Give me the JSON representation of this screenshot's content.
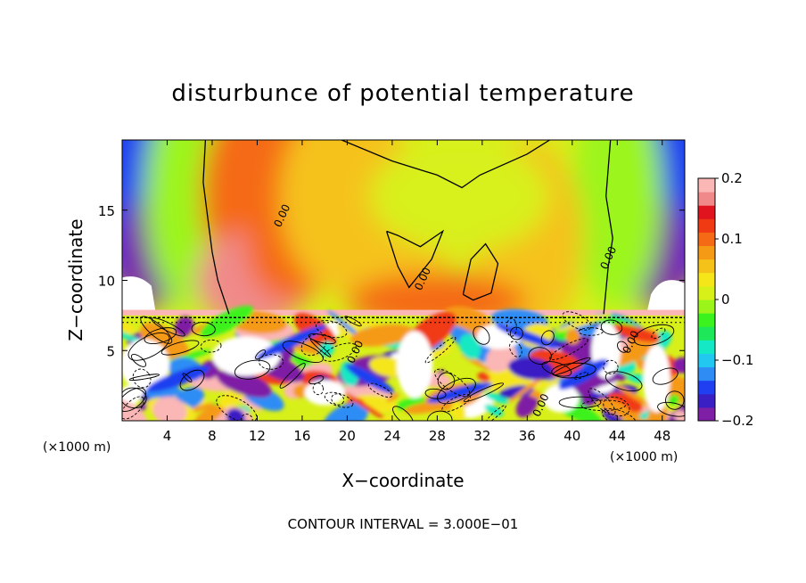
{
  "chart_data": {
    "type": "heatmap",
    "title": "disturbunce of potential temperature",
    "xlabel": "X−coordinate",
    "ylabel": "Z−coordinate",
    "x_unit": "(×1000 m)",
    "y_unit": "(×1000 m)",
    "xlim": [
      0,
      50
    ],
    "ylim": [
      0,
      20
    ],
    "x_ticks": [
      4,
      8,
      12,
      16,
      20,
      24,
      28,
      32,
      36,
      40,
      44,
      48
    ],
    "y_ticks": [
      5,
      10,
      15
    ],
    "colorbar": {
      "range": [
        -0.2,
        0.2
      ],
      "ticks": [
        0.2,
        0.1,
        0,
        -0.1,
        -0.2
      ],
      "tick_labels": [
        "0.2",
        "0.1",
        "0",
        "−0.1",
        "−0.2"
      ],
      "colors": [
        "#7f1fa6",
        "#3a1fc4",
        "#1f3ff0",
        "#2f8cf5",
        "#22c8f0",
        "#14e8c4",
        "#1ee85a",
        "#3cf21e",
        "#9cf51a",
        "#d8f01a",
        "#f5e61a",
        "#f5c21a",
        "#f59a14",
        "#f56a14",
        "#f03a14",
        "#e0141e",
        "#f08a8a",
        "#fbb6b6"
      ]
    },
    "contour_labels": [
      {
        "text": "0.00",
        "x": 14.5,
        "z": 14.5
      },
      {
        "text": "0.00",
        "x": 27.0,
        "z": 10.0
      },
      {
        "text": "0.00",
        "x": 43.5,
        "z": 11.5
      },
      {
        "text": "0.00",
        "x": 45.5,
        "z": 5.5
      },
      {
        "text": "0.00",
        "x": 21.0,
        "z": 4.8
      },
      {
        "text": "0.00",
        "x": 37.5,
        "z": 1.0
      }
    ],
    "contour_interval_text": "CONTOUR INTERVAL = 3.000E−01"
  }
}
